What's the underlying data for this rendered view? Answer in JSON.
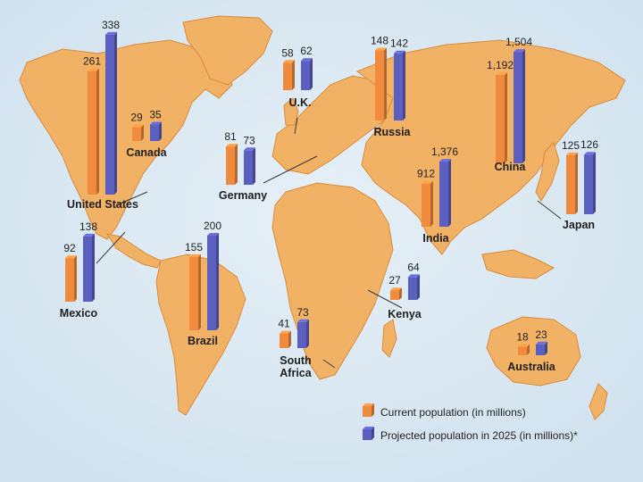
{
  "legend": {
    "current": "Current population (in millions)",
    "projected": "Projected population in 2025 (in millions)*"
  },
  "colors": {
    "ocean": "#dce9f3",
    "land": "#f2b266",
    "current": "#f08a3c",
    "projected": "#5a5fc0"
  },
  "countries": [
    {
      "id": "united-states",
      "label": "United States",
      "current": 261,
      "current_label": "261",
      "projected": 338,
      "projected_label": "338"
    },
    {
      "id": "canada",
      "label": "Canada",
      "current": 29,
      "current_label": "29",
      "projected": 35,
      "projected_label": "35"
    },
    {
      "id": "mexico",
      "label": "Mexico",
      "current": 92,
      "current_label": "92",
      "projected": 138,
      "projected_label": "138"
    },
    {
      "id": "brazil",
      "label": "Brazil",
      "current": 155,
      "current_label": "155",
      "projected": 200,
      "projected_label": "200"
    },
    {
      "id": "germany",
      "label": "Germany",
      "current": 81,
      "current_label": "81",
      "projected": 73,
      "projected_label": "73"
    },
    {
      "id": "uk",
      "label": "U.K.",
      "current": 58,
      "current_label": "58",
      "projected": 62,
      "projected_label": "62"
    },
    {
      "id": "russia",
      "label": "Russia",
      "current": 148,
      "current_label": "148",
      "projected": 142,
      "projected_label": "142"
    },
    {
      "id": "india",
      "label": "India",
      "current": 912,
      "current_label": "912",
      "projected": 1376,
      "projected_label": "1,376"
    },
    {
      "id": "china",
      "label": "China",
      "current": 1192,
      "current_label": "1,192",
      "projected": 1504,
      "projected_label": "1,504"
    },
    {
      "id": "japan",
      "label": "Japan",
      "current": 125,
      "current_label": "125",
      "projected": 126,
      "projected_label": "126"
    },
    {
      "id": "kenya",
      "label": "Kenya",
      "current": 27,
      "current_label": "27",
      "projected": 64,
      "projected_label": "64"
    },
    {
      "id": "south-africa",
      "label": "South\nAfrica",
      "label_lines": [
        "South",
        "Africa"
      ],
      "current": 41,
      "current_label": "41",
      "projected": 73,
      "projected_label": "73"
    },
    {
      "id": "australia",
      "label": "Australia",
      "current": 18,
      "current_label": "18",
      "projected": 23,
      "projected_label": "23"
    }
  ]
}
